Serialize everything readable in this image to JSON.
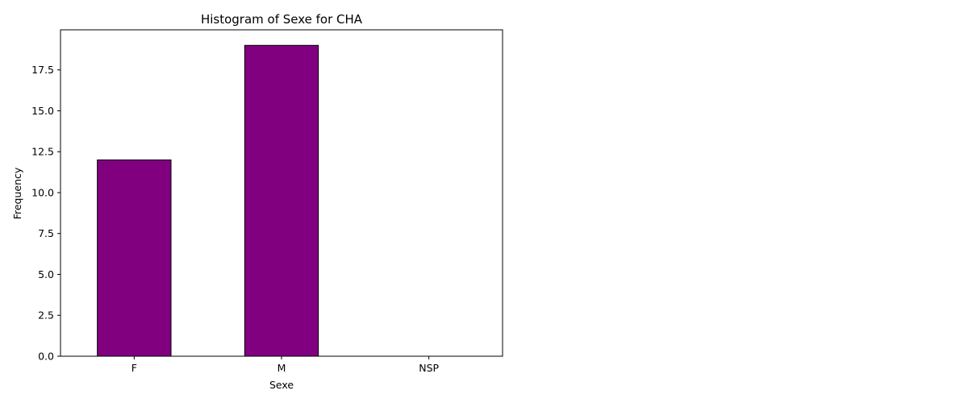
{
  "chart_data": {
    "type": "bar",
    "title": "Histogram of Sexe for CHA",
    "xlabel": "Sexe",
    "ylabel": "Frequency",
    "categories": [
      "F",
      "M",
      "NSP"
    ],
    "values": [
      12,
      19,
      0
    ],
    "ylim": [
      0,
      19.95
    ],
    "yticks": [
      0.0,
      2.5,
      5.0,
      7.5,
      10.0,
      12.5,
      15.0,
      17.5
    ],
    "ytick_labels": [
      "0.0",
      "2.5",
      "5.0",
      "7.5",
      "10.0",
      "12.5",
      "15.0",
      "17.5"
    ],
    "bar_color": "#800080",
    "edge_color": "#000000",
    "grid": false,
    "legend": "none"
  }
}
